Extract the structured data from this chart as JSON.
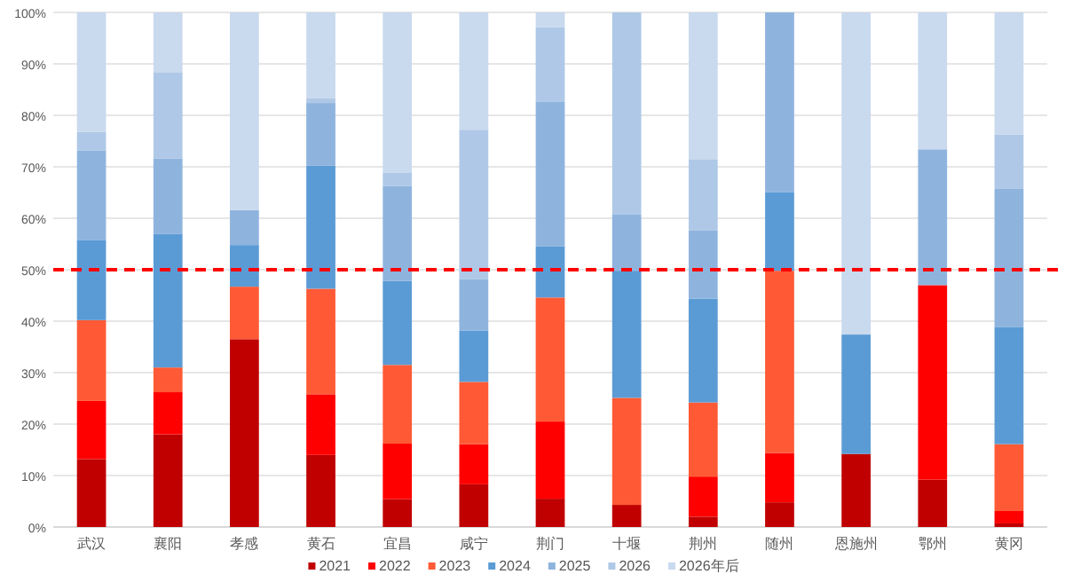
{
  "chart_data": {
    "type": "bar",
    "stacked": true,
    "categories": [
      "武汉",
      "襄阳",
      "孝感",
      "黄石",
      "宜昌",
      "咸宁",
      "荆门",
      "十堰",
      "荆州",
      "随州",
      "恩施州",
      "鄂州",
      "黄冈"
    ],
    "series": [
      {
        "name": "2021",
        "color": "#c00000",
        "values": [
          13.2,
          18,
          36.5,
          14,
          5.4,
          8.3,
          5.5,
          4.3,
          2,
          4.8,
          14.2,
          9.2,
          0.7
        ]
      },
      {
        "name": "2022",
        "color": "#ff0000",
        "values": [
          11.3,
          8.2,
          0,
          11.8,
          10.8,
          7.8,
          15,
          0,
          7.8,
          9.6,
          0,
          37.8,
          2.4
        ]
      },
      {
        "name": "2023",
        "color": "#ff5a35",
        "values": [
          15.7,
          4.8,
          10.2,
          20.5,
          15.3,
          12.1,
          24.1,
          20.8,
          14.4,
          35.4,
          0,
          0,
          13
        ]
      },
      {
        "name": "2024",
        "color": "#5b9bd5",
        "values": [
          15.6,
          26,
          8.1,
          23.9,
          16.3,
          10,
          9.9,
          24.7,
          20.2,
          15.3,
          23.2,
          0,
          22.8
        ]
      },
      {
        "name": "2025",
        "color": "#8eb4de",
        "values": [
          17.4,
          14.6,
          6.8,
          12.2,
          18.5,
          10,
          28.2,
          10.9,
          13.2,
          34.9,
          0,
          26.4,
          26.8
        ]
      },
      {
        "name": "2026",
        "color": "#afc8e7",
        "values": [
          3.6,
          16.8,
          0,
          0.9,
          2.6,
          29,
          14.4,
          39.3,
          13.9,
          0,
          0,
          0,
          10.6
        ]
      },
      {
        "name": "2026年后",
        "color": "#c9d9ee",
        "values": [
          23.2,
          11.6,
          38.4,
          16.7,
          31.1,
          22.8,
          2.9,
          0,
          28.5,
          0,
          62.6,
          26.6,
          23.7
        ]
      }
    ],
    "ylim": [
      0,
      100
    ],
    "yticks": [
      {
        "value": 0,
        "label": "0%"
      },
      {
        "value": 10,
        "label": "10%"
      },
      {
        "value": 20,
        "label": "20%"
      },
      {
        "value": 30,
        "label": "30%"
      },
      {
        "value": 40,
        "label": "40%"
      },
      {
        "value": 50,
        "label": "50%"
      },
      {
        "value": 60,
        "label": "60%"
      },
      {
        "value": 70,
        "label": "70%"
      },
      {
        "value": 80,
        "label": "80%"
      },
      {
        "value": 90,
        "label": "90%"
      },
      {
        "value": 100,
        "label": "100%"
      }
    ],
    "grid": "y",
    "legend": "bottom",
    "ref_lines": [
      {
        "axis": "y",
        "value": 50,
        "color": "#ff0000",
        "line_style": "dashed"
      }
    ]
  }
}
